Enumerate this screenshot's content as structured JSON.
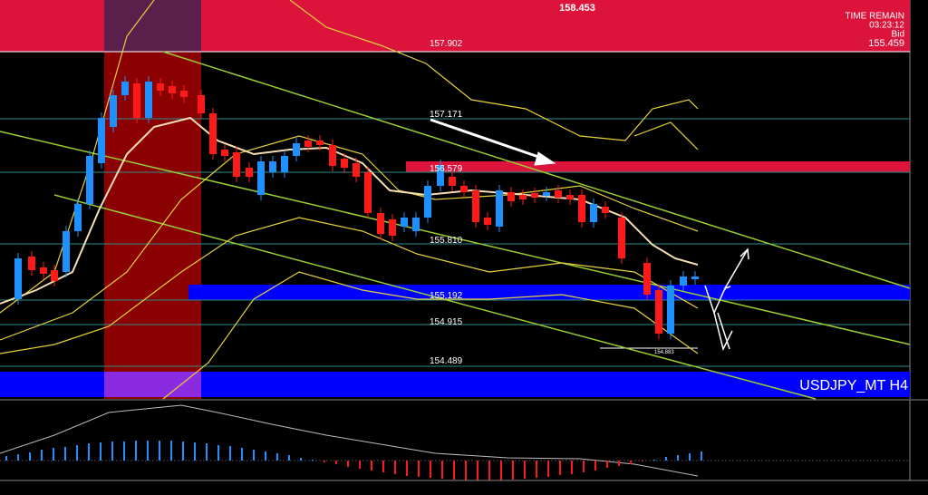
{
  "header": {
    "price": "158.453",
    "time_remain_label": "TIME REMAIN",
    "time_remain": "03:23:12",
    "bid_label": "Bid",
    "bid": "155.459"
  },
  "levels": [
    "157.902",
    "157.171",
    "156.579",
    "155.810",
    "155.192",
    "154.915",
    "154.489"
  ],
  "low_label": "154.883",
  "symbol": "USDJPY_MT H4"
}
